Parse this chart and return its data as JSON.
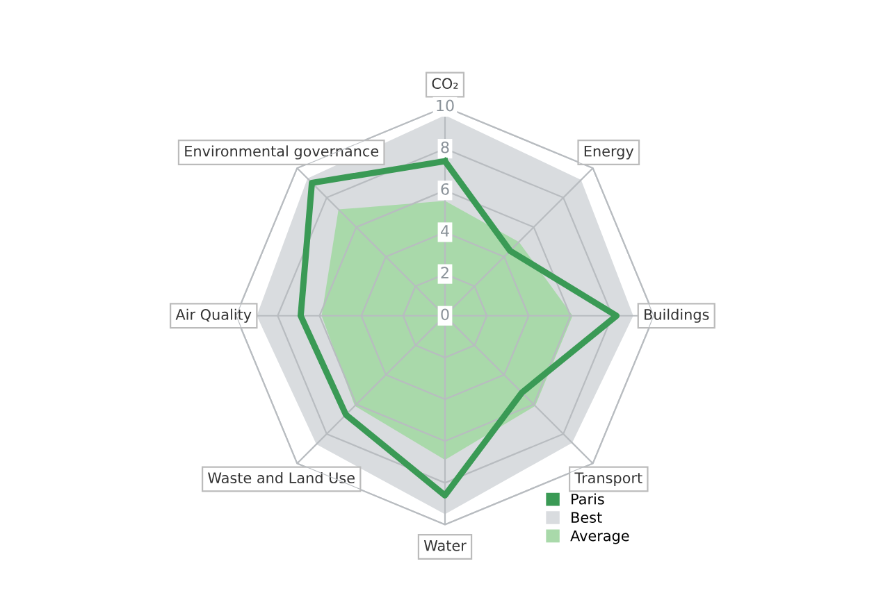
{
  "chart_data": {
    "type": "radar",
    "categories": [
      "CO₂",
      "Energy",
      "Buildings",
      "Transport",
      "Water",
      "Waste and Land Use",
      "Air Quality",
      "Environmental governance"
    ],
    "series": [
      {
        "name": "Paris",
        "color": "#3a9a55",
        "values": [
          7.4,
          4.4,
          8.2,
          5.2,
          8.6,
          6.7,
          6.9,
          9.0
        ]
      },
      {
        "name": "Best",
        "type": "area",
        "color": "#d9dcdf",
        "values": [
          9.6,
          9.2,
          9.0,
          8.6,
          9.5,
          8.7,
          9.0,
          9.3
        ]
      },
      {
        "name": "Average",
        "type": "area",
        "color": "#a9d9aa",
        "values": [
          5.5,
          5.0,
          6.1,
          6.1,
          6.9,
          6.1,
          5.9,
          7.2
        ]
      }
    ],
    "ylim": [
      0,
      10
    ],
    "yticks": [
      0,
      2,
      4,
      6,
      8,
      10
    ],
    "grid": true,
    "legend": "bottom right"
  }
}
